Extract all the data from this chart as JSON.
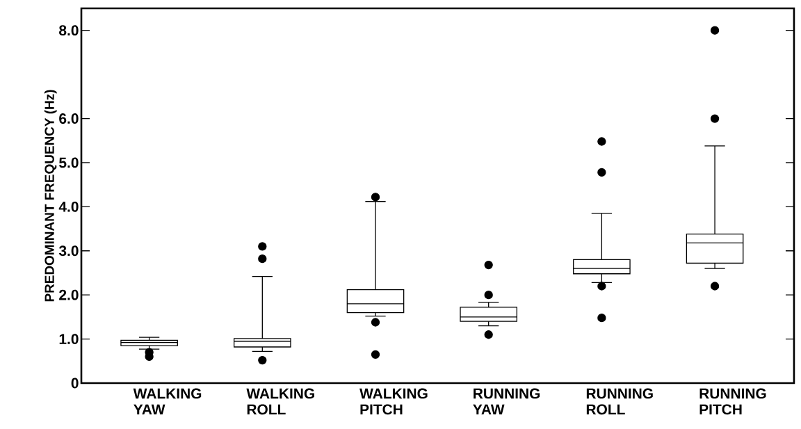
{
  "chart_data": {
    "type": "box",
    "categories": [
      "WALKING YAW",
      "WALKING ROLL",
      "WALKING PITCH",
      "RUNNING YAW",
      "RUNNING ROLL",
      "RUNNING PITCH"
    ],
    "boxes": [
      {
        "low": 0.77,
        "q1": 0.85,
        "median": 0.92,
        "q3": 0.97,
        "high": 1.04,
        "outliers": [
          0.7,
          0.6
        ]
      },
      {
        "low": 0.72,
        "q1": 0.82,
        "median": 0.95,
        "q3": 1.01,
        "high": 2.42,
        "outliers": [
          0.52,
          2.82,
          3.1
        ]
      },
      {
        "low": 1.52,
        "q1": 1.6,
        "median": 1.8,
        "q3": 2.12,
        "high": 4.12,
        "outliers": [
          1.38,
          0.65,
          4.22
        ]
      },
      {
        "low": 1.3,
        "q1": 1.4,
        "median": 1.5,
        "q3": 1.72,
        "high": 1.83,
        "outliers": [
          1.1,
          2.0,
          2.68
        ]
      },
      {
        "low": 2.28,
        "q1": 2.48,
        "median": 2.6,
        "q3": 2.8,
        "high": 3.85,
        "outliers": [
          2.2,
          1.48,
          4.78,
          5.48
        ]
      },
      {
        "low": 2.6,
        "q1": 2.72,
        "median": 3.18,
        "q3": 3.38,
        "high": 5.38,
        "outliers": [
          2.2,
          6.0,
          8.0
        ]
      }
    ],
    "ylabel": "PREDOMINANT FREQUENCY (Hz)",
    "ylim": [
      0,
      8.5
    ],
    "yticks": [
      0,
      {
        "value": 1,
        "label": "1.0"
      },
      {
        "value": 2,
        "label": "2.0"
      },
      {
        "value": 3,
        "label": "3.0"
      },
      {
        "value": 4,
        "label": "4.0"
      },
      {
        "value": 5,
        "label": "5.0"
      },
      {
        "value": 6,
        "label": "6.0"
      },
      {
        "value": 8,
        "label": "8.0"
      }
    ]
  }
}
